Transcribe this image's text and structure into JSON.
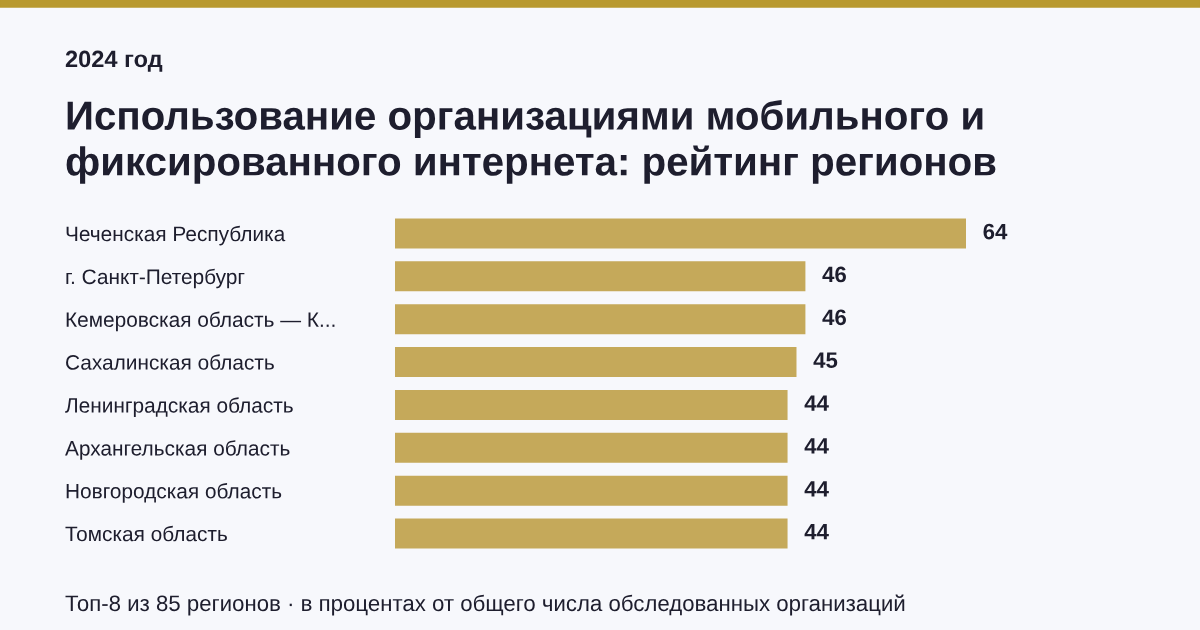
{
  "chart_data": {
    "type": "bar",
    "orientation": "horizontal",
    "subtitle": "2024 год",
    "title": "Использование организациями мобильного и фиксированного интернета: рейтинг регионов",
    "categories": [
      "Чеченская Республика",
      "г. Санкт-Петербург",
      "Кемеровская область — К...",
      "Сахалинская область",
      "Ленинградская область",
      "Архангельская область",
      "Новгородская область",
      "Томская область"
    ],
    "values": [
      64,
      46,
      46,
      45,
      44,
      44,
      44,
      44
    ],
    "color": "#c5a95a",
    "data_labels": true,
    "grid": false,
    "legend": false,
    "annotations": [
      "Топ-8 из 85 регионов · в процентах от общего числа обследованных организаций"
    ]
  }
}
